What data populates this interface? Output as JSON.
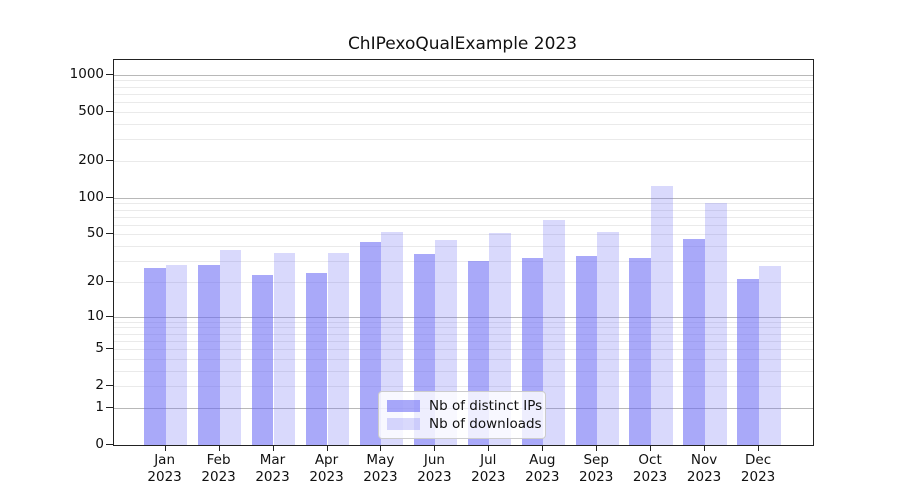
{
  "chart_data": {
    "type": "bar",
    "title": "ChIPexoQualExample 2023",
    "yscale": "log1p",
    "ylim": [
      0,
      1316
    ],
    "grid": true,
    "legend_position": "lower center",
    "months": [
      "Jan",
      "Feb",
      "Mar",
      "Apr",
      "May",
      "Jun",
      "Jul",
      "Aug",
      "Sep",
      "Oct",
      "Nov",
      "Dec"
    ],
    "year_label": "2023",
    "categories": [
      "Jan 2023",
      "Feb 2023",
      "Mar 2023",
      "Apr 2023",
      "May 2023",
      "Jun 2023",
      "Jul 2023",
      "Aug 2023",
      "Sep 2023",
      "Oct 2023",
      "Nov 2023",
      "Dec 2023"
    ],
    "series": [
      {
        "name": "Nb of distinct IPs",
        "color": "rgba(102,102,245,0.56)",
        "values": [
          26,
          28,
          23,
          24,
          43,
          34,
          30,
          32,
          33,
          32,
          46,
          21
        ]
      },
      {
        "name": "Nb of downloads",
        "color": "rgba(102,102,245,0.25)",
        "values": [
          28,
          37,
          35,
          35,
          52,
          45,
          51,
          66,
          52,
          125,
          90,
          27
        ]
      }
    ],
    "yticks": [
      1000,
      500,
      200,
      100,
      50,
      20,
      10,
      5,
      2,
      1,
      0
    ],
    "major_gridlines": [
      1,
      10,
      100,
      1000
    ],
    "minor_gridlines": [
      2,
      3,
      4,
      5,
      6,
      7,
      8,
      9,
      20,
      30,
      40,
      50,
      60,
      70,
      80,
      90,
      200,
      300,
      400,
      500,
      600,
      700,
      800,
      900
    ]
  },
  "style": {
    "major_grid_color": "#b8b8b8",
    "minor_grid_color": "#eaeaea",
    "spine_color": "#222222",
    "legend_border_color": "#cccccc"
  }
}
